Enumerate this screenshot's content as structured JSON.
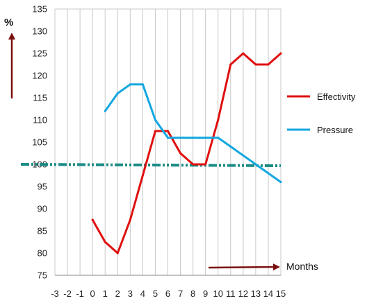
{
  "chart_data": {
    "type": "line",
    "title": "",
    "ylabel": "%",
    "xlabel": "Months",
    "xlim": [
      -3,
      15
    ],
    "ylim": [
      75,
      135
    ],
    "x_ticks": [
      -3,
      -2,
      -1,
      0,
      1,
      2,
      3,
      4,
      5,
      6,
      7,
      8,
      9,
      10,
      11,
      12,
      13,
      14,
      15
    ],
    "y_ticks": [
      75,
      80,
      85,
      90,
      95,
      100,
      105,
      110,
      115,
      120,
      125,
      130,
      135
    ],
    "grid": "vertical",
    "legend": "right",
    "reference_line": {
      "y": 100,
      "color": "#1a8a84",
      "style": "dash-dot"
    },
    "series": [
      {
        "name": "Effectivity",
        "color": "#e01010",
        "x": [
          0,
          1,
          2,
          3,
          4,
          5,
          6,
          7,
          8,
          9,
          10,
          11,
          12,
          13,
          14,
          15
        ],
        "y": [
          87.5,
          82.5,
          80,
          87.5,
          97.5,
          107.5,
          107.5,
          102.5,
          100,
          100,
          110,
          122.5,
          125,
          122.5,
          122.5,
          125
        ]
      },
      {
        "name": "Pressure",
        "color": "#12a7e0",
        "x": [
          1,
          2,
          3,
          4,
          5,
          6,
          7,
          8,
          9,
          10,
          11,
          12,
          13,
          14,
          15
        ],
        "y": [
          112,
          116,
          118,
          118,
          110,
          106,
          106,
          106,
          106,
          106,
          104,
          102,
          100,
          98,
          96
        ]
      }
    ]
  }
}
